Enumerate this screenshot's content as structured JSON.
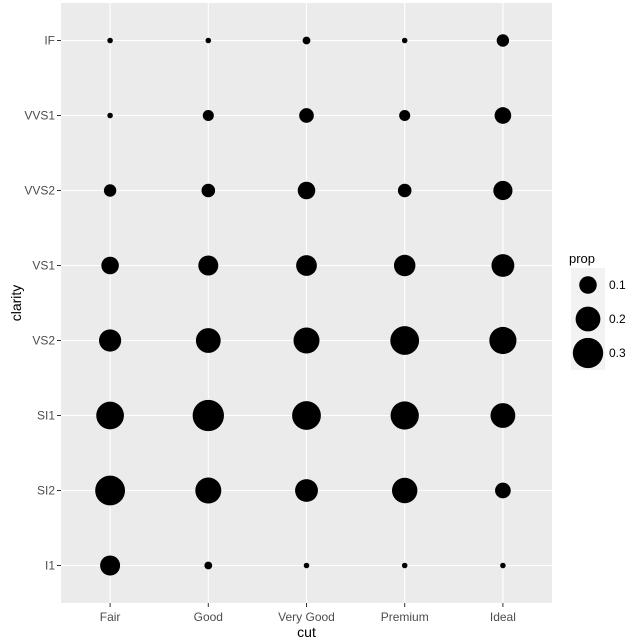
{
  "chart_data": {
    "type": "scatter",
    "xlabel": "cut",
    "ylabel": "clarity",
    "x_categories": [
      "Fair",
      "Good",
      "Very Good",
      "Premium",
      "Ideal"
    ],
    "y_categories": [
      "I1",
      "SI2",
      "SI1",
      "VS2",
      "VS1",
      "VVS2",
      "VVS1",
      "IF"
    ],
    "size_variable": "prop",
    "points": [
      {
        "x": "Fair",
        "y": "I1",
        "prop": 0.13
      },
      {
        "x": "Fair",
        "y": "SI2",
        "prop": 0.29
      },
      {
        "x": "Fair",
        "y": "SI1",
        "prop": 0.25
      },
      {
        "x": "Fair",
        "y": "VS2",
        "prop": 0.16
      },
      {
        "x": "Fair",
        "y": "VS1",
        "prop": 0.1
      },
      {
        "x": "Fair",
        "y": "VVS2",
        "prop": 0.05
      },
      {
        "x": "Fair",
        "y": "VVS1",
        "prop": 0.01
      },
      {
        "x": "Fair",
        "y": "IF",
        "prop": 0.01
      },
      {
        "x": "Good",
        "y": "I1",
        "prop": 0.02
      },
      {
        "x": "Good",
        "y": "SI2",
        "prop": 0.22
      },
      {
        "x": "Good",
        "y": "SI1",
        "prop": 0.32
      },
      {
        "x": "Good",
        "y": "VS2",
        "prop": 0.2
      },
      {
        "x": "Good",
        "y": "VS1",
        "prop": 0.13
      },
      {
        "x": "Good",
        "y": "VVS2",
        "prop": 0.06
      },
      {
        "x": "Good",
        "y": "VVS1",
        "prop": 0.04
      },
      {
        "x": "Good",
        "y": "IF",
        "prop": 0.01
      },
      {
        "x": "Very Good",
        "y": "I1",
        "prop": 0.01
      },
      {
        "x": "Very Good",
        "y": "SI2",
        "prop": 0.17
      },
      {
        "x": "Very Good",
        "y": "SI1",
        "prop": 0.27
      },
      {
        "x": "Very Good",
        "y": "VS2",
        "prop": 0.22
      },
      {
        "x": "Very Good",
        "y": "VS1",
        "prop": 0.14
      },
      {
        "x": "Very Good",
        "y": "VVS2",
        "prop": 0.1
      },
      {
        "x": "Very Good",
        "y": "VVS1",
        "prop": 0.07
      },
      {
        "x": "Very Good",
        "y": "IF",
        "prop": 0.02
      },
      {
        "x": "Premium",
        "y": "I1",
        "prop": 0.01
      },
      {
        "x": "Premium",
        "y": "SI2",
        "prop": 0.21
      },
      {
        "x": "Premium",
        "y": "SI1",
        "prop": 0.26
      },
      {
        "x": "Premium",
        "y": "VS2",
        "prop": 0.27
      },
      {
        "x": "Premium",
        "y": "VS1",
        "prop": 0.15
      },
      {
        "x": "Premium",
        "y": "VVS2",
        "prop": 0.06
      },
      {
        "x": "Premium",
        "y": "VVS1",
        "prop": 0.04
      },
      {
        "x": "Premium",
        "y": "IF",
        "prop": 0.01
      },
      {
        "x": "Ideal",
        "y": "I1",
        "prop": 0.01
      },
      {
        "x": "Ideal",
        "y": "SI2",
        "prop": 0.08
      },
      {
        "x": "Ideal",
        "y": "SI1",
        "prop": 0.2
      },
      {
        "x": "Ideal",
        "y": "VS2",
        "prop": 0.24
      },
      {
        "x": "Ideal",
        "y": "VS1",
        "prop": 0.17
      },
      {
        "x": "Ideal",
        "y": "VVS2",
        "prop": 0.12
      },
      {
        "x": "Ideal",
        "y": "VVS1",
        "prop": 0.09
      },
      {
        "x": "Ideal",
        "y": "IF",
        "prop": 0.05
      }
    ],
    "legend": {
      "title": "prop",
      "position": "right",
      "breaks": [
        0.1,
        0.2,
        0.3
      ],
      "labels": [
        "0.1",
        "0.2",
        "0.3"
      ]
    },
    "grid": true,
    "panel_background": "#ebebeb",
    "gridline_color": "#ffffff",
    "point_color": "#000000"
  }
}
